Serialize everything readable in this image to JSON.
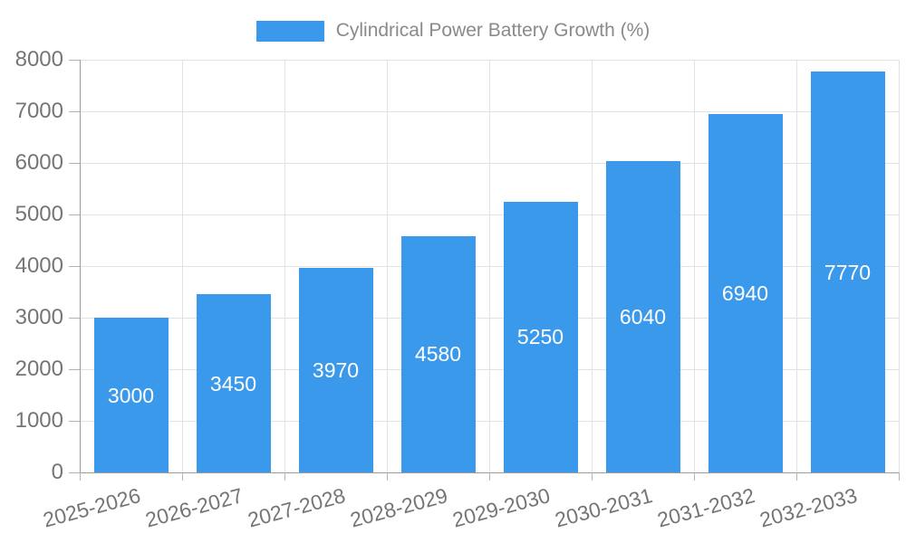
{
  "legend": {
    "label": "Cylindrical Power Battery Growth (%)"
  },
  "colors": {
    "bar": "#3B99EC",
    "bar_label": "#FFFFFF",
    "grid": "#E2E2E2",
    "axis_line": "#9C9C9C",
    "tick": "#B3B3B3",
    "axis_label": "#757575",
    "legend_text": "#8A8A8A",
    "background": "#FFFFFF"
  },
  "chart_data": {
    "type": "bar",
    "title": "Cylindrical Power Battery Growth (%)",
    "series_name": "Cylindrical Power Battery Growth (%)",
    "categories": [
      "2025-2026",
      "2026-2027",
      "2027-2028",
      "2028-2029",
      "2029-2030",
      "2030-2031",
      "2031-2032",
      "2032-2033"
    ],
    "values": [
      3000,
      3450,
      3970,
      4580,
      5250,
      6040,
      6940,
      7770
    ],
    "xlabel": "",
    "ylabel": "",
    "ylim": [
      0,
      8000
    ],
    "ytick_step": 1000,
    "yticks": [
      0,
      1000,
      2000,
      3000,
      4000,
      5000,
      6000,
      7000,
      8000
    ],
    "grid": true,
    "legend_position": "top-center",
    "bar_label_position": "inside-center",
    "x_label_rotation_deg": -15
  }
}
